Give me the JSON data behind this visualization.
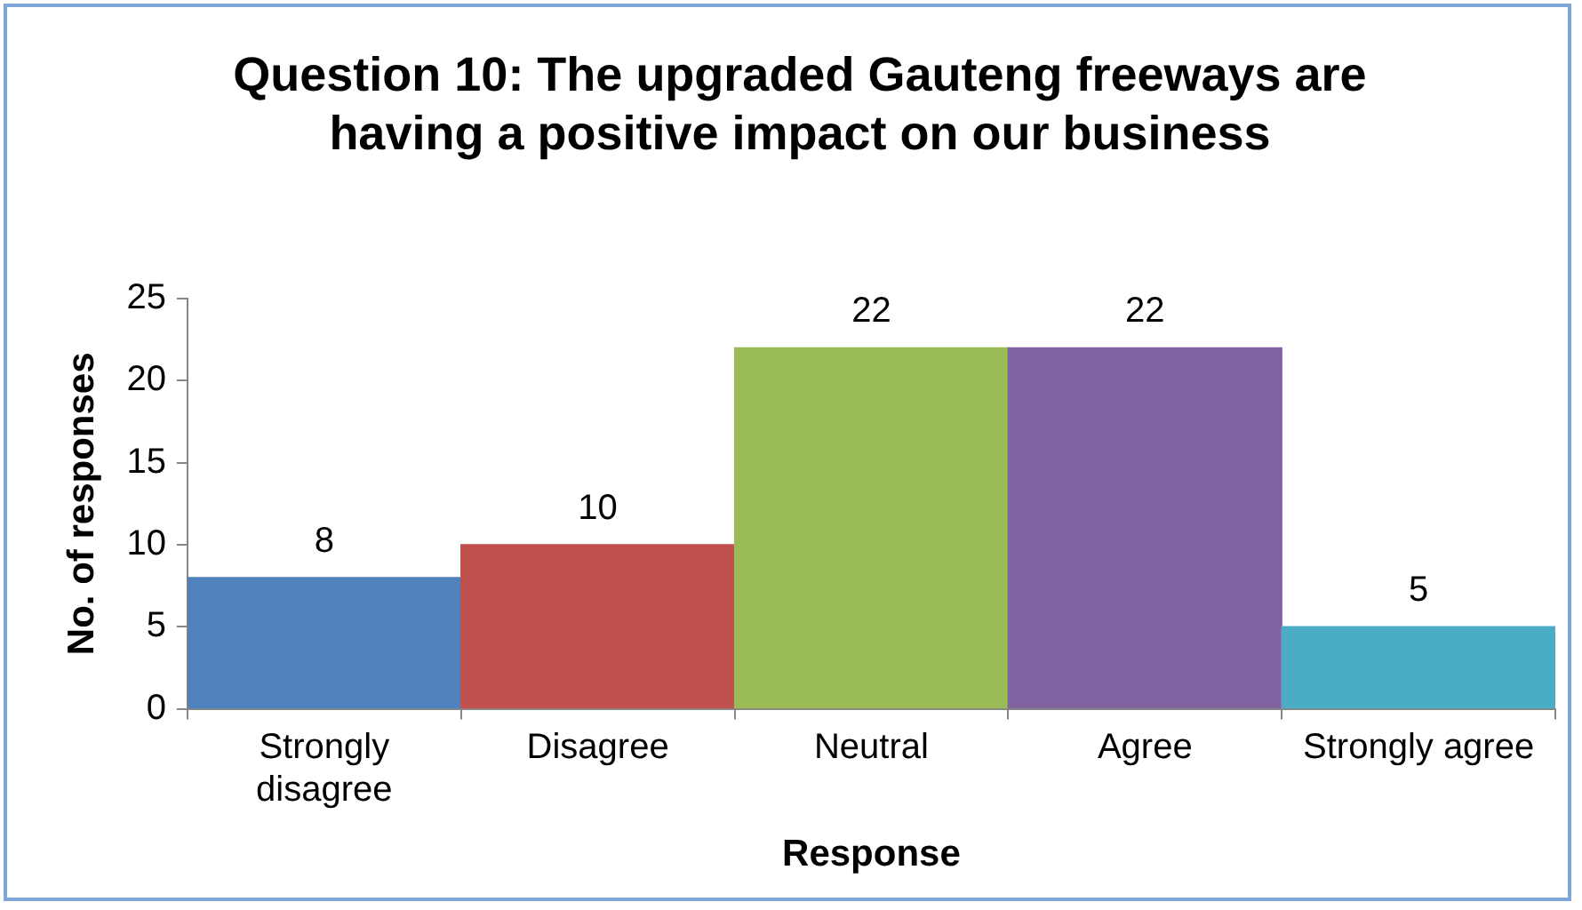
{
  "chart_data": {
    "type": "bar",
    "title": "Question 10: The upgraded Gauteng freeways are having a positive impact on our business",
    "xlabel": "Response",
    "ylabel": "No. of responses",
    "categories": [
      "Strongly disagree",
      "Disagree",
      "Neutral",
      "Agree",
      "Strongly agree"
    ],
    "values": [
      8,
      10,
      22,
      22,
      5
    ],
    "colors": [
      "#4f81bd",
      "#c0504d",
      "#9bbb59",
      "#8064a2",
      "#4bacc6"
    ],
    "ylim": [
      0,
      25
    ],
    "yticks": [
      0,
      5,
      10,
      15,
      20,
      25
    ],
    "grid": false,
    "legend": false,
    "data_labels": true
  }
}
